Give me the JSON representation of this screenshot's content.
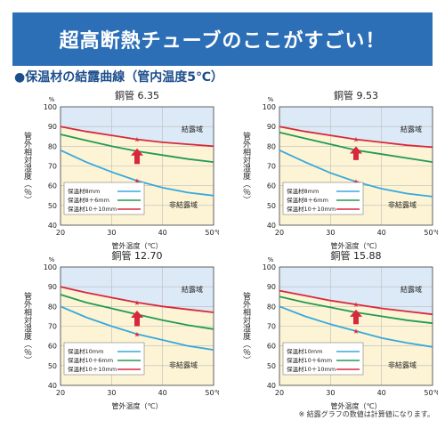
{
  "header": {
    "banner_title": "超高断熱チューブのここがすごい！",
    "section_title": "●保温材の結露曲線（管内温度5℃）",
    "footnote": "※ 結露グラフの数値は計算値になります。"
  },
  "colors": {
    "banner": "#2c6fb6",
    "condensation_zone": "#dceaf7",
    "no_condensation_zone": "#fcf4d4",
    "blue_series": "#38a8dd",
    "green_series": "#239a54",
    "red_series": "#d8283c",
    "arrow": "#d8283c"
  },
  "chart_data": [
    {
      "type": "line",
      "title": "銅管 6.35",
      "xlabel": "管外温度（℃）",
      "ylabel": "管外相対湿度（％）",
      "y_unit": "%",
      "x_ticks": [
        "20",
        "30",
        "40",
        "50℃"
      ],
      "y_ticks": [
        "40",
        "50",
        "60",
        "70",
        "80",
        "90",
        "100"
      ],
      "xlim": [
        20,
        50
      ],
      "ylim": [
        40,
        100
      ],
      "zone_labels": {
        "condensation": "結露域",
        "no_condensation": "非結露域"
      },
      "legend_position": "lower-left",
      "x": [
        20,
        25,
        30,
        35,
        40,
        45,
        50
      ],
      "series": [
        {
          "name": "保温材8mm",
          "color": "blue",
          "values": [
            78,
            72,
            67,
            62.5,
            59,
            56.5,
            55
          ]
        },
        {
          "name": "保温材8＋6mm",
          "color": "green",
          "values": [
            86,
            83,
            80,
            77.5,
            75.5,
            73.5,
            72
          ]
        },
        {
          "name": "保温材10＋10mm",
          "color": "red",
          "values": [
            90,
            87.5,
            85.5,
            83.5,
            82,
            81,
            80
          ]
        }
      ],
      "star_markers": [
        {
          "x": 35,
          "y": 83.5
        },
        {
          "x": 35,
          "y": 77.5
        },
        {
          "x": 35,
          "y": 62.5
        }
      ],
      "arrow": {
        "x": 35,
        "y_from": 71,
        "y_to": 78
      }
    },
    {
      "type": "line",
      "title": "銅管 9.53",
      "xlabel": "管外温度（℃）",
      "ylabel": "管外相対湿度（％）",
      "y_unit": "%",
      "x_ticks": [
        "20",
        "30",
        "40",
        "50℃"
      ],
      "y_ticks": [
        "40",
        "50",
        "60",
        "70",
        "80",
        "90",
        "100"
      ],
      "xlim": [
        20,
        50
      ],
      "ylim": [
        40,
        100
      ],
      "zone_labels": {
        "condensation": "結露域",
        "no_condensation": "非結露域"
      },
      "legend_position": "lower-left",
      "x": [
        20,
        25,
        30,
        35,
        40,
        45,
        50
      ],
      "series": [
        {
          "name": "保温材8mm",
          "color": "blue",
          "values": [
            78,
            72,
            66.5,
            62,
            58.5,
            56,
            54.5
          ]
        },
        {
          "name": "保温材8＋6mm",
          "color": "green",
          "values": [
            87,
            84,
            81,
            78,
            76,
            74,
            72
          ]
        },
        {
          "name": "保温材10＋10mm",
          "color": "red",
          "values": [
            90,
            87.5,
            85.5,
            83.5,
            82,
            80.5,
            79.5
          ]
        }
      ],
      "star_markers": [
        {
          "x": 35,
          "y": 83.5
        },
        {
          "x": 35,
          "y": 78
        },
        {
          "x": 35,
          "y": 62
        }
      ],
      "arrow": {
        "x": 35,
        "y_from": 73,
        "y_to": 79
      }
    },
    {
      "type": "line",
      "title": "銅管 12.70",
      "xlabel": "管外温度（℃）",
      "ylabel": "管外相対湿度（％）",
      "y_unit": "%",
      "x_ticks": [
        "20",
        "30",
        "40",
        "50℃"
      ],
      "y_ticks": [
        "40",
        "50",
        "60",
        "70",
        "80",
        "90",
        "100"
      ],
      "xlim": [
        20,
        50
      ],
      "ylim": [
        40,
        100
      ],
      "zone_labels": {
        "condensation": "結露域",
        "no_condensation": "非結露域"
      },
      "legend_position": "lower-left",
      "x": [
        20,
        25,
        30,
        35,
        40,
        45,
        50
      ],
      "series": [
        {
          "name": "保温材10mm",
          "color": "blue",
          "values": [
            80,
            74.5,
            70,
            66,
            63,
            60,
            58
          ]
        },
        {
          "name": "保温材10＋6mm",
          "color": "green",
          "values": [
            86,
            82,
            79,
            76,
            73,
            70.5,
            68.5
          ]
        },
        {
          "name": "保温材10＋10mm",
          "color": "red",
          "values": [
            90,
            87,
            84.5,
            82,
            80,
            78.5,
            77
          ]
        }
      ],
      "star_markers": [
        {
          "x": 35,
          "y": 82
        },
        {
          "x": 35,
          "y": 76
        },
        {
          "x": 35,
          "y": 66
        }
      ],
      "arrow": {
        "x": 35,
        "y_from": 70,
        "y_to": 77
      }
    },
    {
      "type": "line",
      "title": "銅管 15.88",
      "xlabel": "管外温度（℃）",
      "ylabel": "管外相対湿度（％）",
      "y_unit": "%",
      "x_ticks": [
        "20",
        "30",
        "40",
        "50℃"
      ],
      "y_ticks": [
        "40",
        "50",
        "60",
        "70",
        "80",
        "90",
        "100"
      ],
      "xlim": [
        20,
        50
      ],
      "ylim": [
        40,
        100
      ],
      "zone_labels": {
        "condensation": "結露域",
        "no_condensation": "非結露域"
      },
      "legend_position": "lower-left",
      "x": [
        20,
        25,
        30,
        35,
        40,
        45,
        50
      ],
      "series": [
        {
          "name": "保温材10mm",
          "color": "blue",
          "values": [
            80,
            75,
            71,
            67.5,
            64,
            61.5,
            59.5
          ]
        },
        {
          "name": "保温材10＋6mm",
          "color": "green",
          "values": [
            85,
            82,
            79.5,
            77,
            75,
            73,
            71.5
          ]
        },
        {
          "name": "保温材10＋10mm",
          "color": "red",
          "values": [
            88,
            85.5,
            83,
            81,
            79,
            77.5,
            76
          ]
        }
      ],
      "star_markers": [
        {
          "x": 35,
          "y": 81
        },
        {
          "x": 35,
          "y": 77
        },
        {
          "x": 35,
          "y": 67.5
        }
      ],
      "arrow": {
        "x": 35,
        "y_from": 71,
        "y_to": 77.5
      }
    }
  ]
}
